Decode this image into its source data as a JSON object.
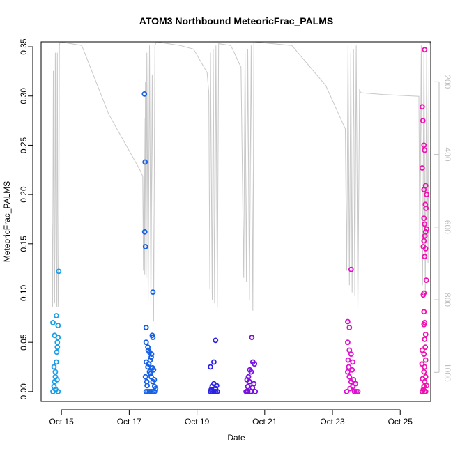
{
  "chart_data": {
    "type": "scatter",
    "title": "ATOM3 Northbound MeteoricFrac_PALMS",
    "xlabel": "Date",
    "ylabel": "MeteoricFrac_PALMS",
    "x_ticks": [
      "Oct 15",
      "Oct 17",
      "Oct 19",
      "Oct 21",
      "Oct 23",
      "Oct 25"
    ],
    "x_tick_days": [
      15,
      17,
      19,
      21,
      23,
      25
    ],
    "xlim_days": [
      14.4,
      25.9
    ],
    "ylim": [
      -0.01,
      0.355
    ],
    "y_ticks": [
      0.0,
      0.05,
      0.1,
      0.15,
      0.2,
      0.25,
      0.3,
      0.35
    ],
    "y_tick_labels": [
      "0.00",
      "0.05",
      "0.10",
      "0.15",
      "0.20",
      "0.25",
      "0.30",
      "0.35"
    ],
    "right_axis": {
      "reversed": true,
      "lim": [
        90,
        1080
      ],
      "ticks": [
        200,
        400,
        600,
        800,
        1000
      ],
      "tick_labels": [
        "200",
        "400",
        "600",
        "800",
        "1000"
      ],
      "color": "#bfbfbf"
    },
    "grid": false,
    "series": [
      {
        "color": "#1a9ee6",
        "points": [
          [
            14.75,
            0.0
          ],
          [
            14.78,
            0.005
          ],
          [
            14.8,
            0.01
          ],
          [
            14.82,
            0.02
          ],
          [
            14.85,
            0.03
          ],
          [
            14.88,
            0.05
          ],
          [
            14.9,
            0.055
          ],
          [
            14.75,
            0.07
          ],
          [
            14.8,
            0.057
          ],
          [
            14.85,
            0.077
          ],
          [
            14.9,
            0.067
          ],
          [
            14.88,
            0.045
          ],
          [
            14.82,
            0.015
          ],
          [
            14.86,
            0.04
          ],
          [
            14.92,
            0.122
          ],
          [
            14.78,
            0.025
          ],
          [
            14.83,
            0.002
          ],
          [
            14.9,
            0.0
          ],
          [
            14.87,
            0.012
          ]
        ]
      },
      {
        "color": "#1560e6",
        "points": [
          [
            17.45,
            0.302
          ],
          [
            17.47,
            0.233
          ],
          [
            17.46,
            0.162
          ],
          [
            17.48,
            0.147
          ],
          [
            17.7,
            0.101
          ],
          [
            17.5,
            0.065
          ],
          [
            17.5,
            0.05
          ],
          [
            17.55,
            0.045
          ],
          [
            17.6,
            0.04
          ],
          [
            17.65,
            0.035
          ],
          [
            17.7,
            0.055
          ],
          [
            17.68,
            0.057
          ],
          [
            17.5,
            0.03
          ],
          [
            17.55,
            0.025
          ],
          [
            17.6,
            0.02
          ],
          [
            17.65,
            0.015
          ],
          [
            17.7,
            0.01
          ],
          [
            17.75,
            0.005
          ],
          [
            17.5,
            0.0
          ],
          [
            17.55,
            0.0
          ],
          [
            17.6,
            0.0
          ],
          [
            17.65,
            0.0
          ],
          [
            17.7,
            0.0
          ],
          [
            17.75,
            0.0
          ],
          [
            17.52,
            0.01
          ],
          [
            17.58,
            0.028
          ],
          [
            17.62,
            0.032
          ],
          [
            17.72,
            0.022
          ],
          [
            17.48,
            0.015
          ],
          [
            17.56,
            0.042
          ],
          [
            17.66,
            0.038
          ],
          [
            17.74,
            0.012
          ],
          [
            17.53,
            0.006
          ],
          [
            17.63,
            0.018
          ],
          [
            17.69,
            0.024
          ],
          [
            17.78,
            0.003
          ]
        ]
      },
      {
        "color": "#2b22e6",
        "points": [
          [
            19.4,
            0.025
          ],
          [
            19.5,
            0.03
          ],
          [
            19.55,
            0.052
          ],
          [
            19.4,
            0.0
          ],
          [
            19.45,
            0.0
          ],
          [
            19.5,
            0.0
          ],
          [
            19.55,
            0.0
          ],
          [
            19.6,
            0.0
          ],
          [
            19.45,
            0.005
          ],
          [
            19.5,
            0.008
          ],
          [
            19.55,
            0.003
          ],
          [
            19.42,
            0.002
          ],
          [
            19.58,
            0.006
          ]
        ]
      },
      {
        "color": "#7a10e0",
        "points": [
          [
            20.45,
            0.0
          ],
          [
            20.5,
            0.005
          ],
          [
            20.55,
            0.01
          ],
          [
            20.6,
            0.02
          ],
          [
            20.65,
            0.03
          ],
          [
            20.7,
            0.028
          ],
          [
            20.62,
            0.055
          ],
          [
            20.52,
            0.015
          ],
          [
            20.58,
            0.0
          ],
          [
            20.68,
            0.008
          ],
          [
            20.48,
            0.012
          ],
          [
            20.56,
            0.022
          ],
          [
            20.72,
            0.0
          ],
          [
            20.64,
            0.004
          ],
          [
            20.5,
            0.0
          ],
          [
            20.6,
            0.0
          ]
        ]
      },
      {
        "color": "#e010d0",
        "points": [
          [
            23.45,
            0.071
          ],
          [
            23.5,
            0.065
          ],
          [
            23.55,
            0.124
          ],
          [
            23.45,
            0.05
          ],
          [
            23.5,
            0.042
          ],
          [
            23.55,
            0.038
          ],
          [
            23.6,
            0.03
          ],
          [
            23.45,
            0.02
          ],
          [
            23.5,
            0.015
          ],
          [
            23.55,
            0.01
          ],
          [
            23.6,
            0.005
          ],
          [
            23.65,
            0.0
          ],
          [
            23.7,
            0.0
          ],
          [
            23.75,
            0.0
          ],
          [
            23.48,
            0.025
          ],
          [
            23.58,
            0.022
          ],
          [
            23.62,
            0.012
          ],
          [
            23.68,
            0.008
          ],
          [
            23.52,
            0.003
          ],
          [
            23.42,
            0.0
          ],
          [
            23.46,
            0.032
          ]
        ]
      },
      {
        "color": "#f010b0",
        "points": [
          [
            25.72,
            0.347
          ],
          [
            25.65,
            0.289
          ],
          [
            25.67,
            0.275
          ],
          [
            25.7,
            0.25
          ],
          [
            25.72,
            0.245
          ],
          [
            25.65,
            0.227
          ],
          [
            25.75,
            0.209
          ],
          [
            25.7,
            0.205
          ],
          [
            25.78,
            0.2
          ],
          [
            25.74,
            0.19
          ],
          [
            25.76,
            0.186
          ],
          [
            25.7,
            0.176
          ],
          [
            25.72,
            0.17
          ],
          [
            25.78,
            0.165
          ],
          [
            25.75,
            0.162
          ],
          [
            25.73,
            0.158
          ],
          [
            25.7,
            0.153
          ],
          [
            25.68,
            0.147
          ],
          [
            25.75,
            0.145
          ],
          [
            25.72,
            0.137
          ],
          [
            25.77,
            0.113
          ],
          [
            25.7,
            0.1
          ],
          [
            25.68,
            0.098
          ],
          [
            25.7,
            0.081
          ],
          [
            25.72,
            0.07
          ],
          [
            25.7,
            0.068
          ],
          [
            25.75,
            0.058
          ],
          [
            25.72,
            0.053
          ],
          [
            25.74,
            0.045
          ],
          [
            25.65,
            0.042
          ],
          [
            25.7,
            0.038
          ],
          [
            25.75,
            0.032
          ],
          [
            25.72,
            0.025
          ],
          [
            25.7,
            0.02
          ],
          [
            25.75,
            0.015
          ],
          [
            25.72,
            0.01
          ],
          [
            25.7,
            0.005
          ],
          [
            25.75,
            0.0
          ],
          [
            25.72,
            0.0
          ],
          [
            25.65,
            0.0
          ],
          [
            25.68,
            0.002
          ],
          [
            25.78,
            0.006
          ],
          [
            25.66,
            0.013
          ],
          [
            25.64,
            0.028
          ]
        ]
      }
    ],
    "altitude_trace": {
      "color": "#c8c8c8",
      "points": [
        [
          14.72,
          590
        ],
        [
          14.74,
          820
        ],
        [
          14.76,
          170
        ],
        [
          14.78,
          700
        ],
        [
          14.8,
          810
        ],
        [
          14.82,
          120
        ],
        [
          14.84,
          690
        ],
        [
          14.86,
          820
        ],
        [
          14.88,
          120
        ],
        [
          14.9,
          820
        ],
        [
          14.92,
          700
        ],
        [
          14.94,
          100
        ],
        [
          14.96,
          90
        ],
        [
          15.6,
          100
        ],
        [
          16.4,
          290
        ],
        [
          17.3,
          440
        ],
        [
          17.4,
          460
        ],
        [
          17.42,
          720
        ],
        [
          17.44,
          300
        ],
        [
          17.46,
          730
        ],
        [
          17.48,
          200
        ],
        [
          17.5,
          740
        ],
        [
          17.52,
          120
        ],
        [
          17.56,
          800
        ],
        [
          17.6,
          100
        ],
        [
          17.64,
          820
        ],
        [
          17.68,
          180
        ],
        [
          17.72,
          860
        ],
        [
          17.76,
          100
        ],
        [
          17.8,
          90
        ],
        [
          18.5,
          100
        ],
        [
          18.9,
          110
        ],
        [
          19.3,
          175
        ],
        [
          19.35,
          230
        ],
        [
          19.38,
          770
        ],
        [
          19.4,
          120
        ],
        [
          19.45,
          800
        ],
        [
          19.48,
          110
        ],
        [
          19.52,
          810
        ],
        [
          19.56,
          100
        ],
        [
          19.6,
          820
        ],
        [
          19.64,
          95
        ],
        [
          20.0,
          100
        ],
        [
          20.3,
          160
        ],
        [
          20.38,
          740
        ],
        [
          20.42,
          120
        ],
        [
          20.46,
          750
        ],
        [
          20.5,
          110
        ],
        [
          20.55,
          800
        ],
        [
          20.6,
          100
        ],
        [
          20.65,
          830
        ],
        [
          20.68,
          90
        ],
        [
          21.8,
          100
        ],
        [
          22.8,
          210
        ],
        [
          23.38,
          330
        ],
        [
          23.42,
          720
        ],
        [
          23.46,
          100
        ],
        [
          23.5,
          760
        ],
        [
          23.54,
          120
        ],
        [
          23.58,
          780
        ],
        [
          23.62,
          110
        ],
        [
          23.66,
          790
        ],
        [
          23.7,
          100
        ],
        [
          23.75,
          830
        ],
        [
          23.8,
          220
        ],
        [
          23.83,
          230
        ],
        [
          24.5,
          235
        ],
        [
          25.55,
          240
        ],
        [
          25.58,
          700
        ],
        [
          25.62,
          100
        ],
        [
          25.66,
          760
        ],
        [
          25.7,
          110
        ],
        [
          25.74,
          780
        ],
        [
          25.78,
          120
        ],
        [
          25.82,
          700
        ],
        [
          25.85,
          100
        ],
        [
          25.88,
          90
        ]
      ]
    }
  }
}
